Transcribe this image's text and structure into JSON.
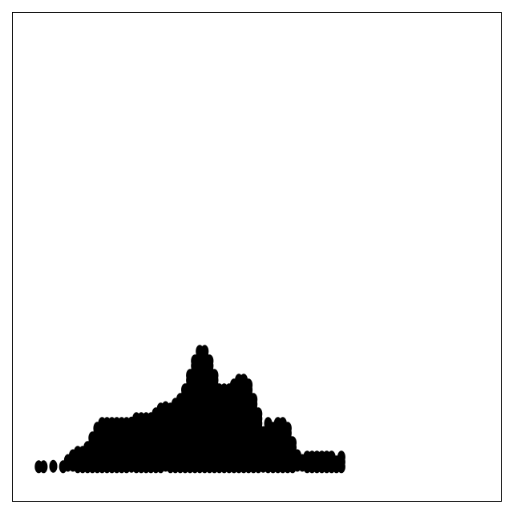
{
  "chart_data": {
    "type": "scatter",
    "marker": "filled-circle",
    "marker_color": "#000000",
    "title": "",
    "xlabel": "",
    "ylabel": "",
    "xlim": [
      0,
      100
    ],
    "ylim": [
      0,
      100
    ],
    "grid": false,
    "axes_ticks_visible": false,
    "columns": [
      {
        "x": 4.3,
        "top": 7.3
      },
      {
        "x": 5.3,
        "top": 8.3
      },
      {
        "x": 6.3,
        "top": 8.7
      },
      {
        "x": 7.3,
        "top": 7.3
      },
      {
        "x": 8.3,
        "top": 8.7
      },
      {
        "x": 9.3,
        "top": 7.3
      },
      {
        "x": 10.3,
        "top": 9.0
      },
      {
        "x": 11.3,
        "top": 10.3
      },
      {
        "x": 12.3,
        "top": 11.0
      },
      {
        "x": 13.3,
        "top": 11.7
      },
      {
        "x": 14.3,
        "top": 11.8
      },
      {
        "x": 15.3,
        "top": 13.0
      },
      {
        "x": 16.3,
        "top": 14.8
      },
      {
        "x": 17.3,
        "top": 16.7
      },
      {
        "x": 18.3,
        "top": 17.2
      },
      {
        "x": 19.3,
        "top": 17.7
      },
      {
        "x": 20.3,
        "top": 17.7
      },
      {
        "x": 21.3,
        "top": 17.6
      },
      {
        "x": 22.3,
        "top": 17.7
      },
      {
        "x": 23.3,
        "top": 17.5
      },
      {
        "x": 24.3,
        "top": 18.1
      },
      {
        "x": 25.3,
        "top": 18.3
      },
      {
        "x": 26.3,
        "top": 18.7
      },
      {
        "x": 27.3,
        "top": 18.7
      },
      {
        "x": 28.3,
        "top": 18.3
      },
      {
        "x": 29.3,
        "top": 19.2
      },
      {
        "x": 30.3,
        "top": 20.8
      },
      {
        "x": 31.3,
        "top": 20.5
      },
      {
        "x": 32.3,
        "top": 20.3
      },
      {
        "x": 33.3,
        "top": 21.8
      },
      {
        "x": 34.3,
        "top": 22.9
      },
      {
        "x": 35.3,
        "top": 24.6
      },
      {
        "x": 36.3,
        "top": 27.5
      },
      {
        "x": 37.3,
        "top": 30.0
      },
      {
        "x": 38.3,
        "top": 32.5
      },
      {
        "x": 39.3,
        "top": 32.7
      },
      {
        "x": 40.3,
        "top": 30.0
      },
      {
        "x": 41.3,
        "top": 27.2
      },
      {
        "x": 42.3,
        "top": 24.6
      },
      {
        "x": 43.3,
        "top": 24.1
      },
      {
        "x": 44.3,
        "top": 24.3
      },
      {
        "x": 45.3,
        "top": 25.6
      },
      {
        "x": 46.3,
        "top": 26.8
      },
      {
        "x": 47.3,
        "top": 26.6
      },
      {
        "x": 48.3,
        "top": 25.8
      },
      {
        "x": 49.3,
        "top": 22.1
      },
      {
        "x": 50.3,
        "top": 20.0
      },
      {
        "x": 51.3,
        "top": 15.8
      },
      {
        "x": 52.3,
        "top": 17.2
      },
      {
        "x": 53.3,
        "top": 17.1
      },
      {
        "x": 54.3,
        "top": 17.7
      },
      {
        "x": 55.3,
        "top": 18.0
      },
      {
        "x": 56.3,
        "top": 16.2
      },
      {
        "x": 57.3,
        "top": 13.2
      },
      {
        "x": 58.3,
        "top": 10.8
      },
      {
        "x": 59.3,
        "top": 9.8
      },
      {
        "x": 60.3,
        "top": 10.6
      },
      {
        "x": 61.3,
        "top": 10.6
      },
      {
        "x": 62.3,
        "top": 10.5
      },
      {
        "x": 63.3,
        "top": 10.7
      },
      {
        "x": 64.3,
        "top": 10.6
      },
      {
        "x": 65.3,
        "top": 10.8
      },
      {
        "x": 66.3,
        "top": 10.0
      },
      {
        "x": 67.3,
        "top": 10.8
      },
      {
        "x": 68.3,
        "top": 7.3
      }
    ],
    "bottoms": [
      {
        "x": 4.3,
        "bottom": 5.7
      },
      {
        "x": 5.3,
        "bottom": 5.7
      },
      {
        "x": 6.3,
        "bottom": 5.7
      },
      {
        "x": 7.3,
        "bottom": 5.7
      },
      {
        "x": 8.3,
        "bottom": 5.8
      },
      {
        "x": 9.3,
        "bottom": 6.0
      },
      {
        "x": 10.3,
        "bottom": 5.7
      },
      {
        "x": 11.3,
        "bottom": 6.0
      },
      {
        "x": 12.3,
        "bottom": 6.0
      },
      {
        "x": 13.3,
        "bottom": 5.7
      },
      {
        "x": 14.3,
        "bottom": 5.7
      },
      {
        "x": 15.3,
        "bottom": 5.7
      },
      {
        "x": 16.3,
        "bottom": 5.7
      },
      {
        "x": 17.3,
        "bottom": 5.7
      },
      {
        "x": 18.3,
        "bottom": 5.7
      },
      {
        "x": 19.3,
        "bottom": 5.7
      },
      {
        "x": 20.3,
        "bottom": 5.7
      },
      {
        "x": 21.3,
        "bottom": 5.7
      },
      {
        "x": 22.3,
        "bottom": 5.7
      },
      {
        "x": 23.3,
        "bottom": 5.7
      },
      {
        "x": 24.3,
        "bottom": 5.8
      },
      {
        "x": 25.3,
        "bottom": 5.7
      },
      {
        "x": 26.3,
        "bottom": 5.7
      },
      {
        "x": 27.3,
        "bottom": 5.7
      },
      {
        "x": 28.3,
        "bottom": 5.7
      },
      {
        "x": 29.3,
        "bottom": 5.7
      },
      {
        "x": 30.3,
        "bottom": 5.7
      },
      {
        "x": 31.3,
        "bottom": 6.0
      },
      {
        "x": 32.3,
        "bottom": 5.7
      },
      {
        "x": 33.3,
        "bottom": 5.7
      },
      {
        "x": 34.3,
        "bottom": 5.7
      },
      {
        "x": 35.3,
        "bottom": 5.7
      },
      {
        "x": 36.3,
        "bottom": 5.7
      },
      {
        "x": 37.3,
        "bottom": 5.7
      },
      {
        "x": 38.3,
        "bottom": 5.7
      },
      {
        "x": 39.3,
        "bottom": 5.7
      },
      {
        "x": 40.3,
        "bottom": 5.7
      },
      {
        "x": 41.3,
        "bottom": 5.7
      },
      {
        "x": 42.3,
        "bottom": 5.7
      },
      {
        "x": 43.3,
        "bottom": 5.7
      },
      {
        "x": 44.3,
        "bottom": 5.7
      },
      {
        "x": 45.3,
        "bottom": 5.7
      },
      {
        "x": 46.3,
        "bottom": 5.7
      },
      {
        "x": 47.3,
        "bottom": 5.7
      },
      {
        "x": 48.3,
        "bottom": 5.7
      },
      {
        "x": 49.3,
        "bottom": 5.7
      },
      {
        "x": 50.3,
        "bottom": 5.7
      },
      {
        "x": 51.3,
        "bottom": 5.8
      },
      {
        "x": 52.3,
        "bottom": 5.7
      },
      {
        "x": 53.3,
        "bottom": 5.7
      },
      {
        "x": 54.3,
        "bottom": 5.7
      },
      {
        "x": 55.3,
        "bottom": 5.7
      },
      {
        "x": 56.3,
        "bottom": 5.7
      },
      {
        "x": 57.3,
        "bottom": 5.7
      },
      {
        "x": 58.3,
        "bottom": 6.0
      },
      {
        "x": 59.3,
        "bottom": 6.0
      },
      {
        "x": 60.3,
        "bottom": 5.7
      },
      {
        "x": 61.3,
        "bottom": 5.7
      },
      {
        "x": 62.3,
        "bottom": 5.7
      },
      {
        "x": 63.3,
        "bottom": 5.7
      },
      {
        "x": 64.3,
        "bottom": 5.7
      },
      {
        "x": 65.3,
        "bottom": 5.7
      },
      {
        "x": 66.3,
        "bottom": 5.7
      },
      {
        "x": 67.3,
        "bottom": 5.7
      },
      {
        "x": 68.3,
        "bottom": 5.7
      }
    ]
  }
}
